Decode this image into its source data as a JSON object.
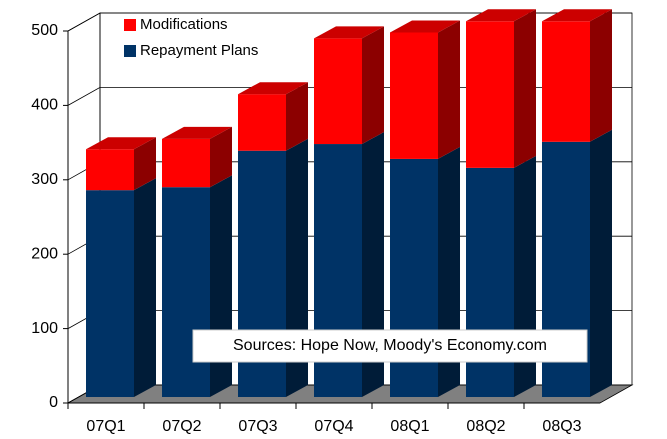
{
  "chart_data": {
    "type": "bar3d_stacked",
    "categories": [
      "07Q1",
      "07Q2",
      "07Q3",
      "07Q4",
      "08Q1",
      "08Q2",
      "08Q3"
    ],
    "series": [
      {
        "name": "Repayment Plans",
        "color": "#003366",
        "values": [
          278,
          282,
          331,
          340,
          320,
          308,
          343
        ]
      },
      {
        "name": "Modifications",
        "color": "#ff0000",
        "values": [
          55,
          65,
          76,
          142,
          170,
          197,
          162
        ]
      }
    ],
    "ylim": [
      0,
      500
    ],
    "yticks": [
      0,
      100,
      200,
      300,
      400,
      500
    ],
    "grid": true,
    "annotation": "Sources: Hope Now, Moody's Economy.com"
  }
}
